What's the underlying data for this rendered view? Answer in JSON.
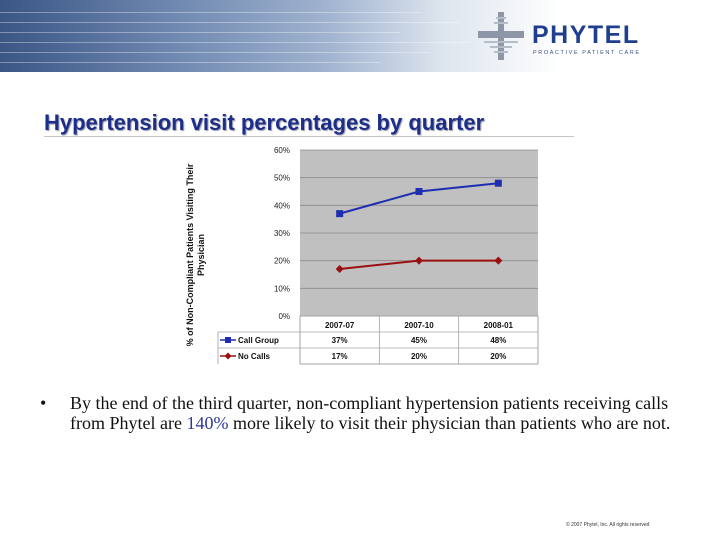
{
  "header": {
    "logo_text": "PHYTEL",
    "logo_tagline": "PROACTIVE PATIENT CARE"
  },
  "slide": {
    "title": "Hypertension visit percentages by quarter",
    "bullet": {
      "symbol": "•",
      "text_before": "By the end of the third quarter, non-compliant hypertension patients receiving calls from Phytel are ",
      "highlight": "140%",
      "text_after": " more likely to visit their physician than patients who are not."
    },
    "footer": "© 2007 Phytel, Inc. All rights reserved"
  },
  "chart_data": {
    "type": "line",
    "title": "",
    "xlabel": "",
    "ylabel": "% of Non-Compliant Patients Visiting Their Physician",
    "categories": [
      "2007-07",
      "2007-10",
      "2008-01"
    ],
    "series": [
      {
        "name": "Call Group",
        "values": [
          37,
          45,
          48
        ],
        "labels": [
          "37%",
          "45%",
          "48%"
        ],
        "color": "#1e2eb0",
        "marker": "square"
      },
      {
        "name": "No Calls",
        "values": [
          17,
          20,
          20
        ],
        "labels": [
          "17%",
          "20%",
          "20%"
        ],
        "color": "#9a1010",
        "marker": "diamond"
      }
    ],
    "ylim": [
      0,
      60
    ],
    "yticks": [
      0,
      10,
      20,
      30,
      40,
      50,
      60
    ],
    "ytick_labels": [
      "0%",
      "10%",
      "20%",
      "30%",
      "40%",
      "50%",
      "60%"
    ],
    "grid": true,
    "plot_background": "#c0c0c0",
    "data_table": true
  }
}
